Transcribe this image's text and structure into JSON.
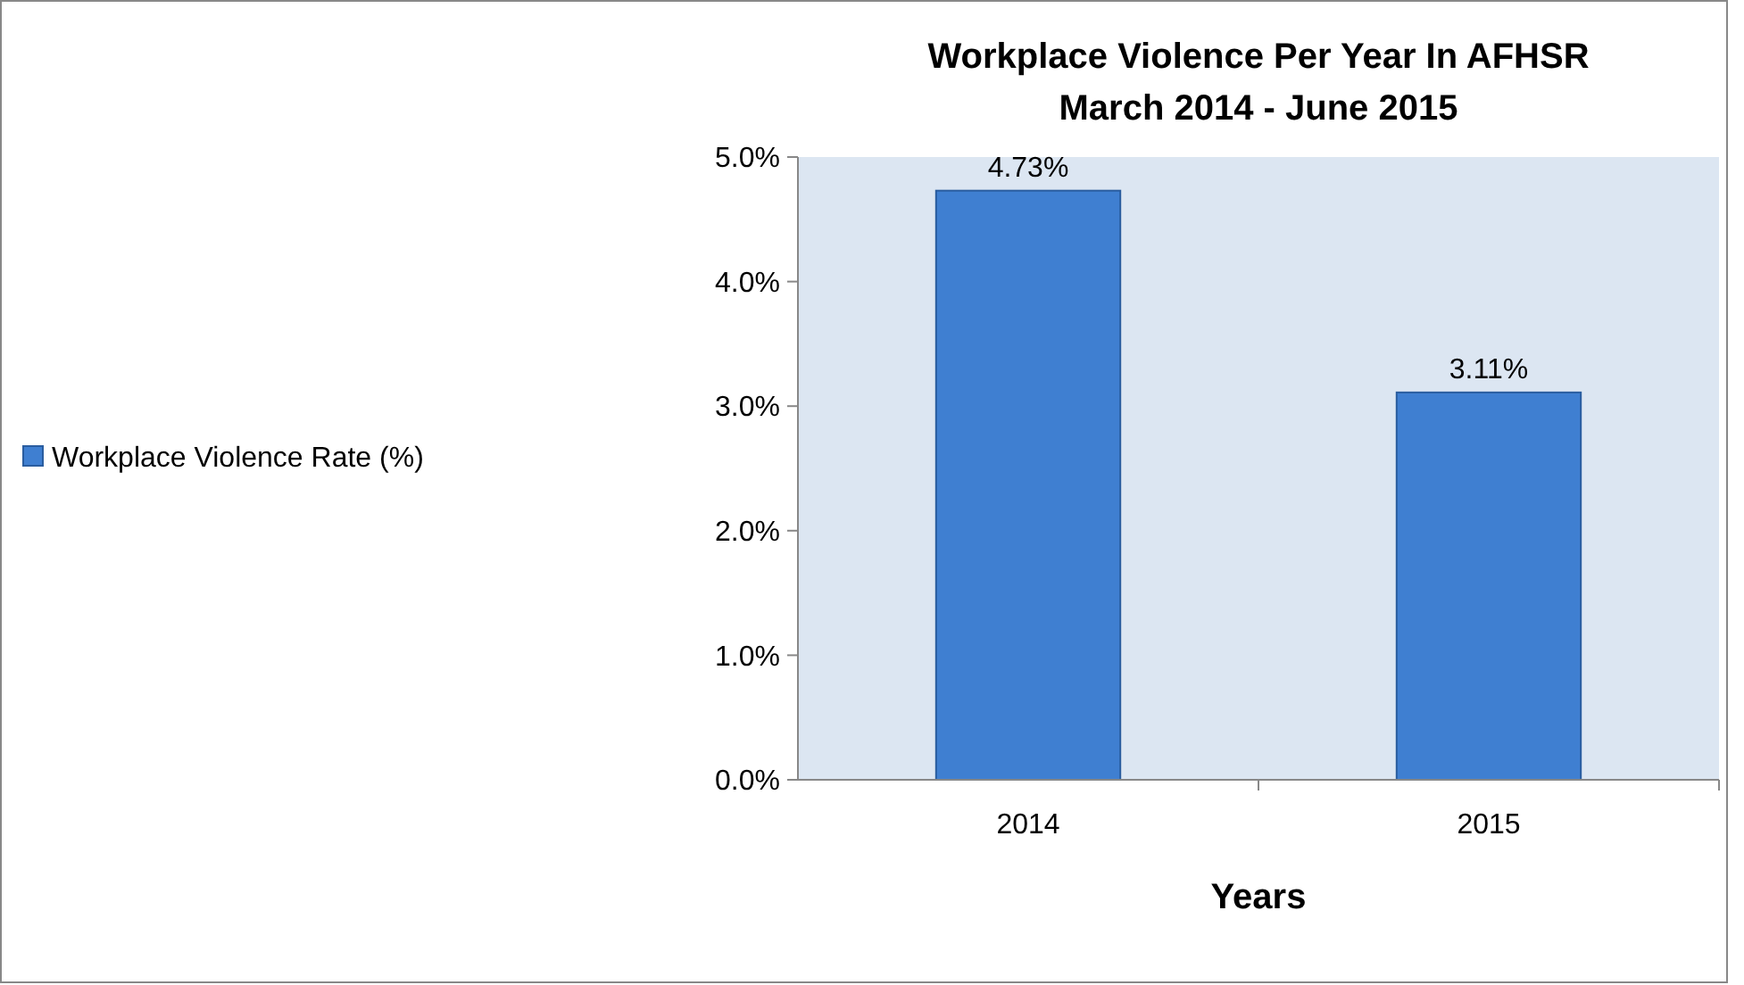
{
  "chart_data": {
    "type": "bar",
    "title": "Workplace Violence Per Year In AFHSR",
    "subtitle": "March 2014 - June 2015",
    "xlabel": "Years",
    "categories": [
      "2014",
      "2015"
    ],
    "series": [
      {
        "name": "Workplace Violence Rate (%)",
        "color": "#3f7fd1",
        "values": [
          4.73,
          3.11
        ],
        "value_labels": [
          "4.73%",
          "3.11%"
        ]
      }
    ],
    "ylim": [
      0,
      5
    ],
    "yticks": [
      {
        "value": 0,
        "label": "0.0%"
      },
      {
        "value": 1,
        "label": "1.0%"
      },
      {
        "value": 2,
        "label": "2.0%"
      },
      {
        "value": 3,
        "label": "3.0%"
      },
      {
        "value": 4,
        "label": "4.0%"
      },
      {
        "value": 5,
        "label": "5.0%"
      }
    ],
    "legend": "left",
    "grid": false
  }
}
